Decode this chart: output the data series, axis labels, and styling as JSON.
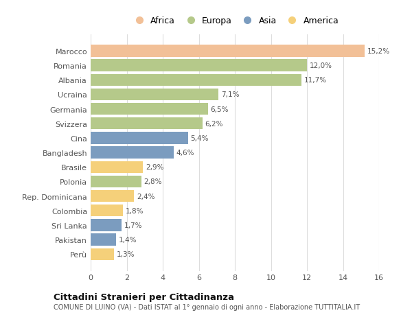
{
  "categories": [
    "Marocco",
    "Romania",
    "Albania",
    "Ucraina",
    "Germania",
    "Svizzera",
    "Cina",
    "Bangladesh",
    "Brasile",
    "Polonia",
    "Rep. Dominicana",
    "Colombia",
    "Sri Lanka",
    "Pakistan",
    "Perù"
  ],
  "values": [
    15.2,
    12.0,
    11.7,
    7.1,
    6.5,
    6.2,
    5.4,
    4.6,
    2.9,
    2.8,
    2.4,
    1.8,
    1.7,
    1.4,
    1.3
  ],
  "labels": [
    "15,2%",
    "12,0%",
    "11,7%",
    "7,1%",
    "6,5%",
    "6,2%",
    "5,4%",
    "4,6%",
    "2,9%",
    "2,8%",
    "2,4%",
    "1,8%",
    "1,7%",
    "1,4%",
    "1,3%"
  ],
  "colors": [
    "#f2c097",
    "#b5c98a",
    "#b5c98a",
    "#b5c98a",
    "#b5c98a",
    "#b5c98a",
    "#7b9cbf",
    "#7b9cbf",
    "#f5d07a",
    "#b5c98a",
    "#f5d07a",
    "#f5d07a",
    "#7b9cbf",
    "#7b9cbf",
    "#f5d07a"
  ],
  "legend_labels": [
    "Africa",
    "Europa",
    "Asia",
    "America"
  ],
  "legend_colors": [
    "#f2c097",
    "#b5c98a",
    "#7b9cbf",
    "#f5d07a"
  ],
  "xlim": [
    0,
    16
  ],
  "xticks": [
    0,
    2,
    4,
    6,
    8,
    10,
    12,
    14,
    16
  ],
  "title": "Cittadini Stranieri per Cittadinanza",
  "subtitle": "COMUNE DI LUINO (VA) - Dati ISTAT al 1° gennaio di ogni anno - Elaborazione TUTTITALIA.IT",
  "background_color": "#ffffff",
  "grid_color": "#dddddd"
}
